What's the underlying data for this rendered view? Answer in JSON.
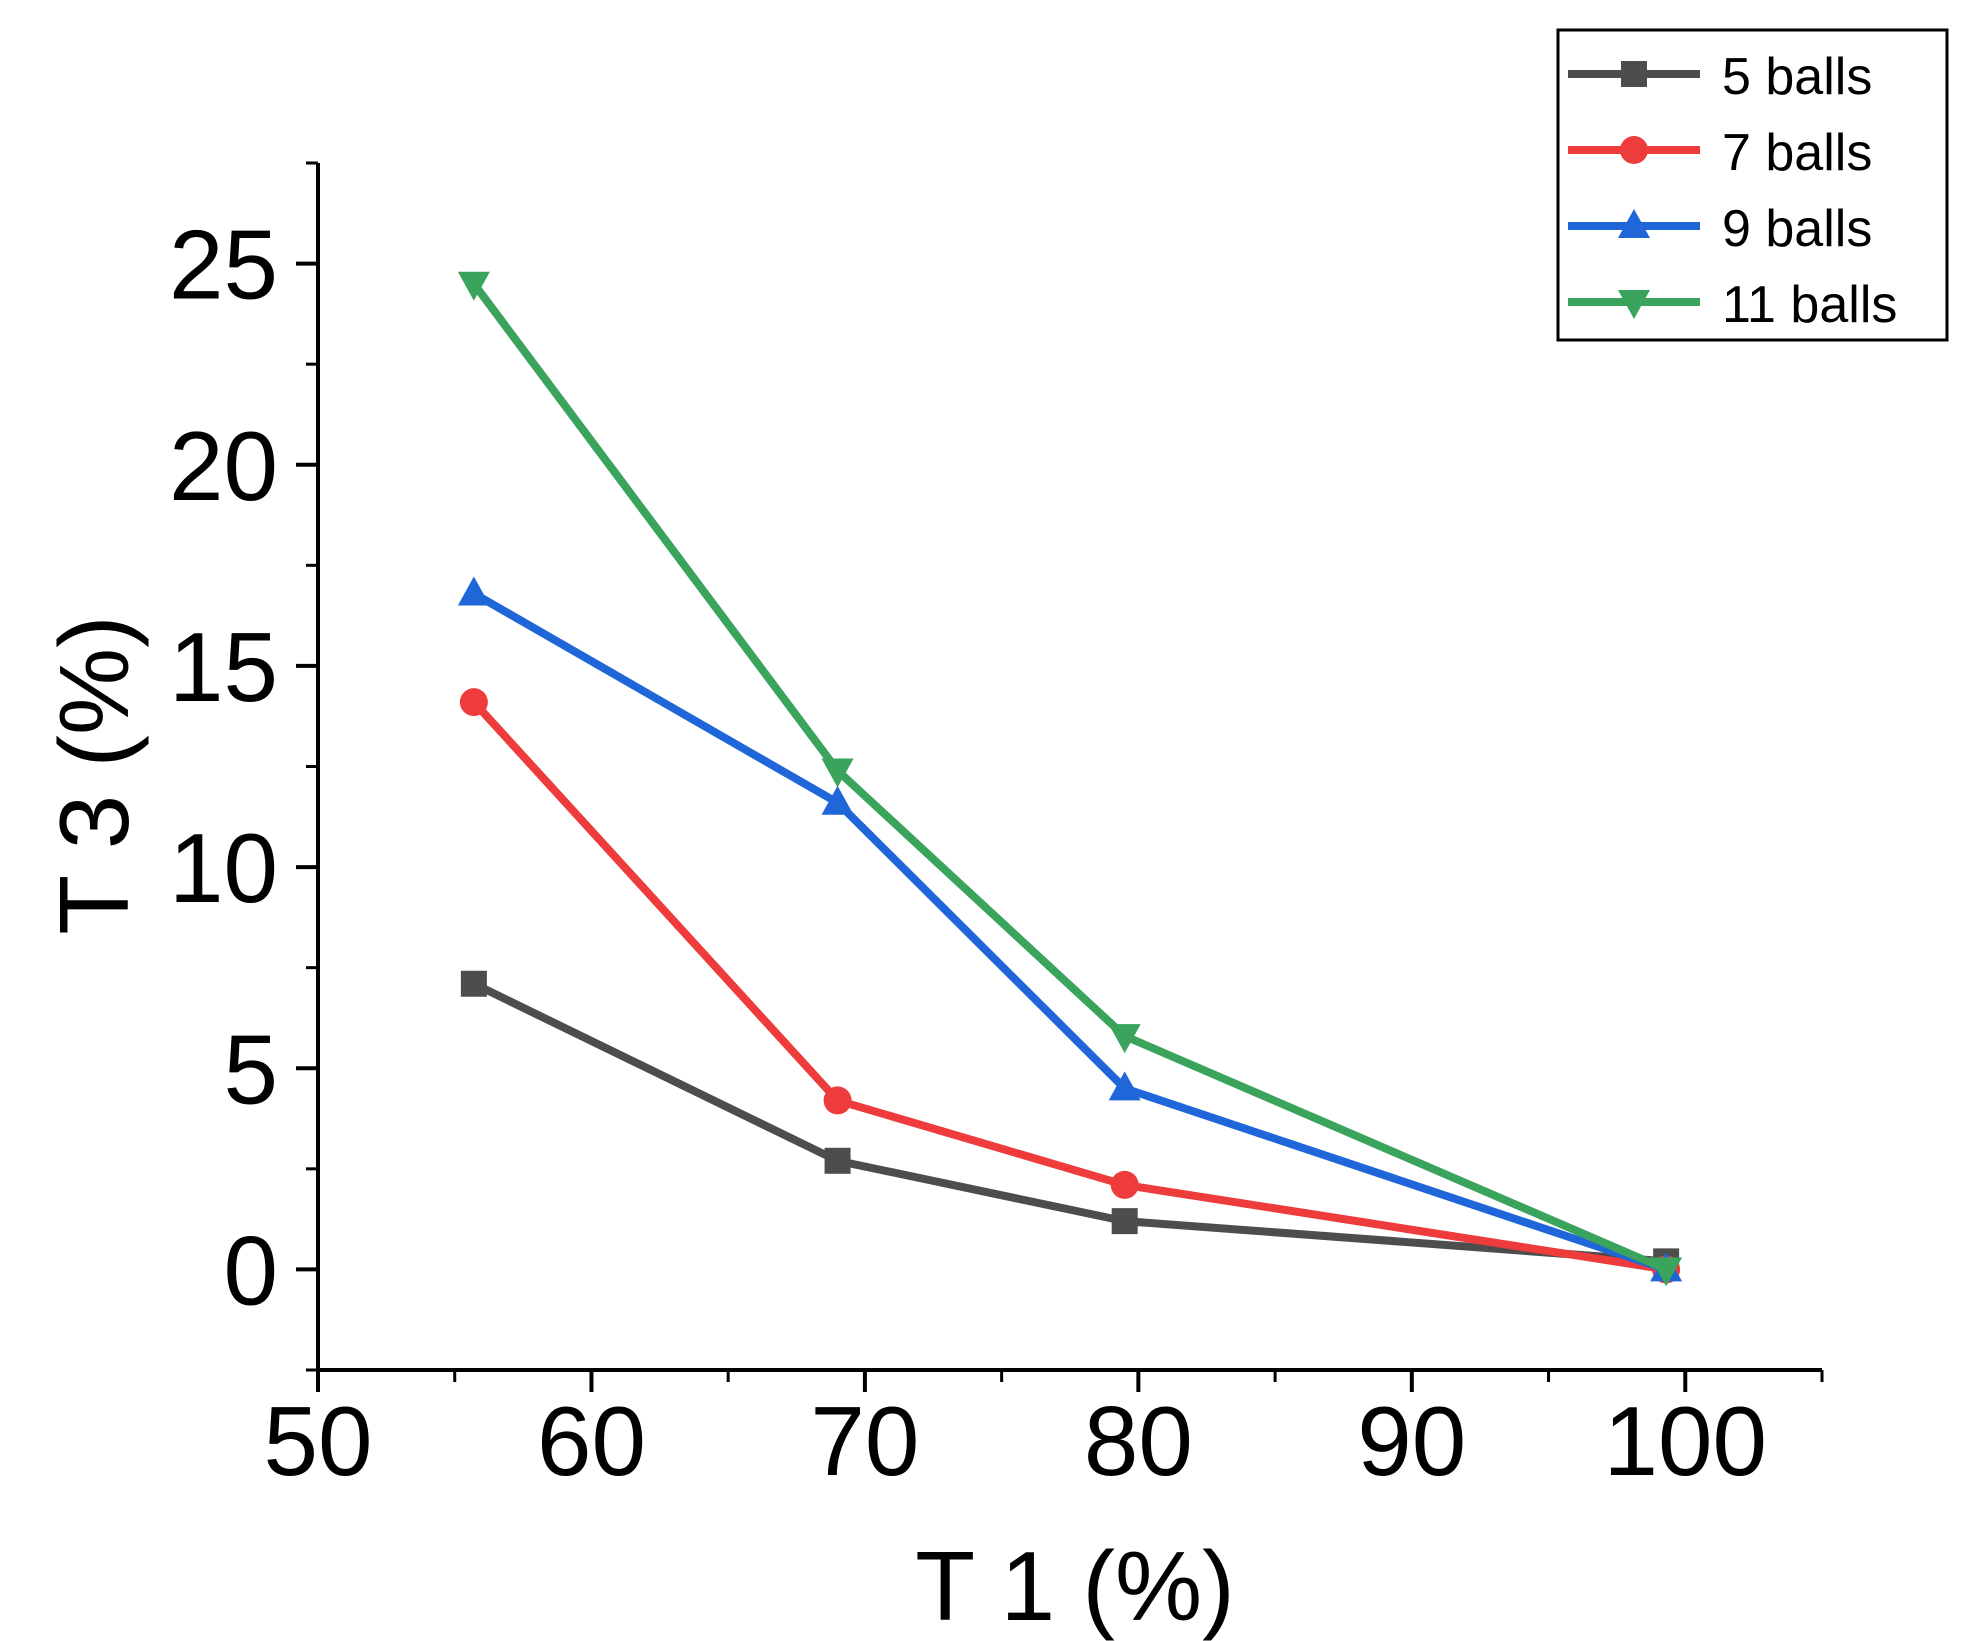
{
  "chart_data": {
    "type": "line",
    "title": "",
    "xlabel": "T 1 (%)",
    "ylabel": "T 3 (%)",
    "xlim": [
      50,
      105
    ],
    "ylim": [
      -2.5,
      27.5
    ],
    "x_ticks": [
      50,
      60,
      70,
      80,
      90,
      100
    ],
    "y_ticks": [
      0,
      5,
      10,
      15,
      20,
      25
    ],
    "x_tick_labels": [
      "50",
      "60",
      "70",
      "80",
      "90",
      "100"
    ],
    "y_tick_labels": [
      "0",
      "5",
      "10",
      "15",
      "20",
      "25"
    ],
    "grid": false,
    "legend_position": "top-right",
    "series": [
      {
        "name": "5 balls",
        "color": "#4d4d4d",
        "marker": "square",
        "x": [
          55.7,
          69.0,
          79.5,
          99.3
        ],
        "y": [
          7.1,
          2.7,
          1.2,
          0.2
        ]
      },
      {
        "name": "7 balls",
        "color": "#ee3b3b",
        "marker": "circle",
        "x": [
          55.7,
          69.0,
          79.5,
          99.3
        ],
        "y": [
          14.1,
          4.2,
          2.1,
          0.0
        ]
      },
      {
        "name": "9 balls",
        "color": "#1f66d8",
        "marker": "triangle-up",
        "x": [
          55.7,
          69.0,
          79.5,
          99.3
        ],
        "y": [
          16.8,
          11.6,
          4.5,
          0.0
        ]
      },
      {
        "name": "11 balls",
        "color": "#3aa35c",
        "marker": "triangle-down",
        "x": [
          55.7,
          69.0,
          79.5,
          99.3
        ],
        "y": [
          24.5,
          12.4,
          5.8,
          0.0
        ]
      }
    ]
  }
}
